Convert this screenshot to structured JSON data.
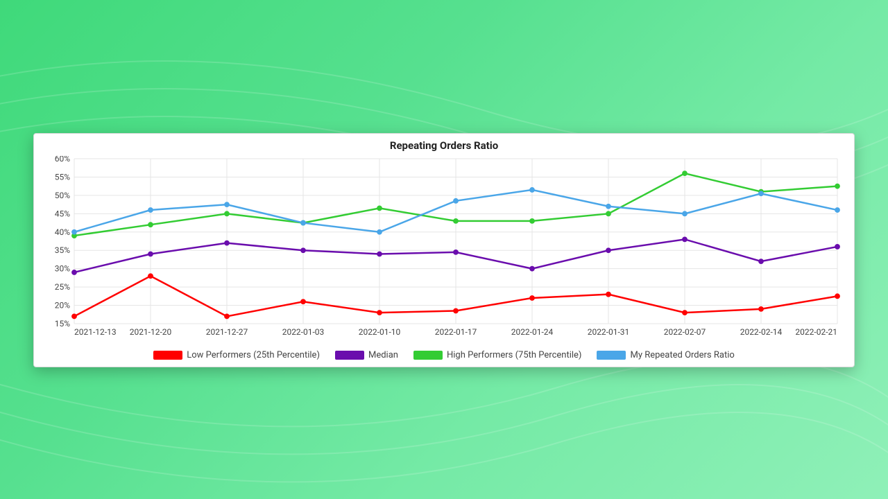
{
  "page": {
    "bg_gradient": [
      "#3fd97a",
      "#56e08f",
      "#75eaa6",
      "#8ff0b8"
    ]
  },
  "chart": {
    "type": "line",
    "title": "Repeating Orders Ratio",
    "title_fontsize": 15,
    "title_color": "#222222",
    "background_color": "#ffffff",
    "card_border_color": "#d8d8d8",
    "grid_color": "#e5e5e5",
    "axis_text_color": "#444444",
    "axis_fontsize": 12,
    "x_labels": [
      "2021-12-13",
      "2021-12-20",
      "2021-12-27",
      "2022-01-03",
      "2022-01-10",
      "2022-01-17",
      "2022-01-24",
      "2022-01-31",
      "2022-02-07",
      "2022-02-14",
      "2022-02-21"
    ],
    "ylim": [
      15,
      60
    ],
    "ytick_step": 5,
    "y_suffix": "%",
    "marker_radius": 3.4,
    "line_width": 2.5,
    "series": [
      {
        "key": "low",
        "name": "Low Performers (25th Percentile)",
        "color": "#ff0000",
        "values": [
          17,
          28,
          17,
          21,
          18,
          18.5,
          22,
          23,
          18,
          19,
          22.5
        ]
      },
      {
        "key": "median",
        "name": "Median",
        "color": "#6a0dad",
        "values": [
          29,
          34,
          37,
          35,
          34,
          34.5,
          30,
          35,
          38,
          32,
          36
        ]
      },
      {
        "key": "high",
        "name": "High Performers (75th Percentile)",
        "color": "#33cc33",
        "values": [
          39,
          42,
          45,
          42.5,
          46.5,
          43,
          43,
          45,
          56,
          51,
          52.5
        ]
      },
      {
        "key": "mine",
        "name": "My Repeated Orders Ratio",
        "color": "#4aa6e8",
        "values": [
          40,
          46,
          47.5,
          42.5,
          40,
          48.5,
          51.5,
          47,
          45,
          50.5,
          46
        ]
      }
    ],
    "legend": {
      "fontsize": 13,
      "text_color": "#444444",
      "swatch_width": 42,
      "swatch_height": 13
    }
  }
}
